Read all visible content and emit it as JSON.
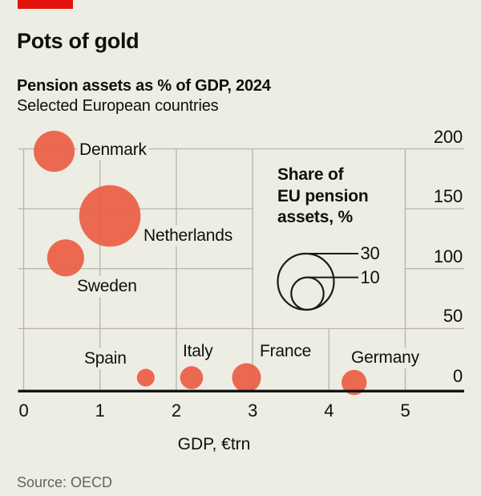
{
  "brand": {
    "accent_color": "#e3120b"
  },
  "header": {
    "title": "Pots of gold",
    "subtitle_bold": "Pension assets as % of GDP, 2024",
    "subtitle": "Selected European countries"
  },
  "chart_data": {
    "type": "scatter",
    "variant": "bubble",
    "title": "Pots of gold",
    "subtitle": "Pension assets as % of GDP, 2024",
    "note": "Selected European countries",
    "xlabel": "GDP, €trn",
    "ylabel": "Pension assets as % of GDP",
    "x_ticks": [
      0,
      1,
      2,
      3,
      4,
      5
    ],
    "y_ticks": [
      200,
      150,
      100,
      50,
      0
    ],
    "xlim": [
      0,
      5.8
    ],
    "ylim": [
      0,
      200
    ],
    "grid": true,
    "legend_position": "inside-right",
    "bubble_color": "#eb5f46",
    "grid_color": "#b3b4ab",
    "axis_color": "#141413",
    "size_legend": {
      "title_lines": [
        "Share of",
        "EU pension",
        "assets, %"
      ],
      "values": [
        30,
        10
      ]
    },
    "points": [
      {
        "country": "Denmark",
        "gdp_eur_trn": 0.4,
        "pension_assets_pct_gdp": 198,
        "eu_share_pct": 16
      },
      {
        "country": "Netherlands",
        "gdp_eur_trn": 1.13,
        "pension_assets_pct_gdp": 144,
        "eu_share_pct": 36
      },
      {
        "country": "Sweden",
        "gdp_eur_trn": 0.55,
        "pension_assets_pct_gdp": 109,
        "eu_share_pct": 13
      },
      {
        "country": "Spain",
        "gdp_eur_trn": 1.6,
        "pension_assets_pct_gdp": 9,
        "eu_share_pct": 3
      },
      {
        "country": "Italy",
        "gdp_eur_trn": 2.2,
        "pension_assets_pct_gdp": 9,
        "eu_share_pct": 5
      },
      {
        "country": "France",
        "gdp_eur_trn": 2.92,
        "pension_assets_pct_gdp": 9,
        "eu_share_pct": 8
      },
      {
        "country": "Germany",
        "gdp_eur_trn": 4.33,
        "pension_assets_pct_gdp": 5,
        "eu_share_pct": 6
      }
    ]
  },
  "source": "Source: OECD"
}
